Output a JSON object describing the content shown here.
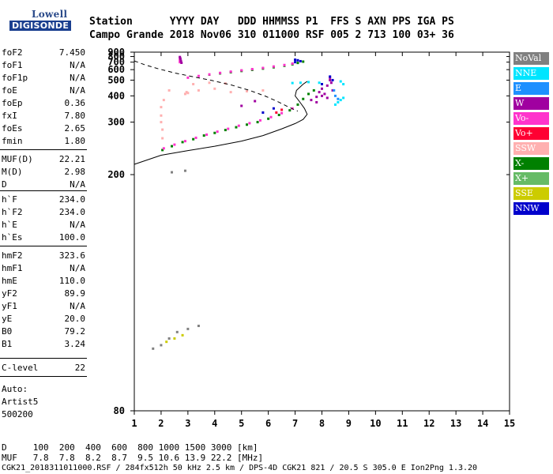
{
  "logo": {
    "line1": "Lowell",
    "line2": "DIGISONDE"
  },
  "header": {
    "row1": "Station      YYYY DAY   DDD HHMMSS P1  FFS S AXN PPS IGA PS",
    "row2": "Campo Grande 2018 Nov06 310 011000 RSF 005 2 713 100 03+ 36"
  },
  "params": [
    {
      "name": "foF2",
      "value": "7.450"
    },
    {
      "name": "foF1",
      "value": "N/A"
    },
    {
      "name": "foF1p",
      "value": "N/A"
    },
    {
      "name": "foE",
      "value": "N/A"
    },
    {
      "name": "foEp",
      "value": "0.36"
    },
    {
      "name": "fxI",
      "value": "7.80"
    },
    {
      "name": "foEs",
      "value": "2.65"
    },
    {
      "name": "fmin",
      "value": "1.80"
    },
    {
      "name": "MUF(D)",
      "value": "22.21"
    },
    {
      "name": "M(D)",
      "value": "2.98"
    },
    {
      "name": "D",
      "value": "N/A"
    },
    {
      "name": "h`F",
      "value": "234.0"
    },
    {
      "name": "h`F2",
      "value": "234.0"
    },
    {
      "name": "h`E",
      "value": "N/A"
    },
    {
      "name": "h`Es",
      "value": "100.0"
    },
    {
      "name": "hmF2",
      "value": "323.6"
    },
    {
      "name": "hmF1",
      "value": "N/A"
    },
    {
      "name": "hmE",
      "value": "110.0"
    },
    {
      "name": "yF2",
      "value": "89.9"
    },
    {
      "name": "yF1",
      "value": "N/A"
    },
    {
      "name": "yE",
      "value": "20.0"
    },
    {
      "name": "B0",
      "value": "79.2"
    },
    {
      "name": "B1",
      "value": "3.24"
    },
    {
      "name": "C-level",
      "value": "22"
    }
  ],
  "auto": {
    "line1": "Auto:",
    "line2": "Artist5",
    "line3": "500200"
  },
  "legend": [
    {
      "label": "NoVal",
      "color": "#808080"
    },
    {
      "label": "NNE",
      "color": "#00e5ff"
    },
    {
      "label": "E",
      "color": "#1e90ff"
    },
    {
      "label": "W",
      "color": "#a000a0"
    },
    {
      "label": "Vo-",
      "color": "#ff33cc"
    },
    {
      "label": "Vo+",
      "color": "#ff0033"
    },
    {
      "label": "SSW",
      "color": "#ffb0b0"
    },
    {
      "label": "X-",
      "color": "#008000"
    },
    {
      "label": "X+",
      "color": "#66bb66"
    },
    {
      "label": "SSE",
      "color": "#cccc00"
    },
    {
      "label": "NNW",
      "color": "#0000cc"
    }
  ],
  "footer": {
    "row1": "D     100  200  400  600  800 1000 1500 3000 [km]",
    "row2": "MUF   7.8  7.8  8.2  8.7  9.5 10.6 13.9 22.2 [MHz]",
    "row3": "CGK21_2018311011000.RSF / 284fx512h 50 kHz 2.5 km / DPS-4D CGK21 821 / 20.5 S 305.0 E Ion2Png 1.3.20"
  },
  "chart_data": {
    "type": "scatter",
    "xlim": [
      1,
      15
    ],
    "ylim": [
      80,
      900
    ],
    "x_ticks": [
      "1",
      "2",
      "3",
      "4",
      "5",
      "6",
      "7",
      "8",
      "9",
      "10",
      "11",
      "12",
      "13",
      "14",
      "15"
    ],
    "y_ticks": [
      "80",
      "200",
      "300",
      "400",
      "500",
      "600",
      "700",
      "800",
      "900"
    ],
    "y_scale": "reciprocal",
    "series": [
      {
        "color": "#008000",
        "points": [
          [
            2.05,
            237
          ],
          [
            2.4,
            244
          ],
          [
            2.8,
            252
          ],
          [
            3.2,
            258
          ],
          [
            3.6,
            266
          ],
          [
            4.0,
            272
          ],
          [
            4.4,
            279
          ],
          [
            4.8,
            286
          ],
          [
            5.2,
            293
          ],
          [
            5.6,
            300
          ],
          [
            6.0,
            310
          ],
          [
            6.4,
            322
          ],
          [
            6.8,
            338
          ],
          [
            7.1,
            360
          ],
          [
            7.3,
            385
          ],
          [
            7.5,
            410
          ],
          [
            7.7,
            430
          ],
          [
            3.8,
            548
          ],
          [
            4.2,
            560
          ],
          [
            4.6,
            572
          ],
          [
            5.0,
            585
          ],
          [
            5.4,
            598
          ],
          [
            5.8,
            612
          ],
          [
            6.2,
            628
          ],
          [
            6.6,
            648
          ],
          [
            6.9,
            668
          ],
          [
            7.1,
            688
          ],
          [
            7.3,
            708
          ]
        ]
      },
      {
        "color": "#ff33cc",
        "points": [
          [
            2.1,
            240
          ],
          [
            2.5,
            247
          ],
          [
            2.9,
            254
          ],
          [
            3.3,
            261
          ],
          [
            3.7,
            268
          ],
          [
            4.1,
            275
          ],
          [
            4.5,
            282
          ],
          [
            4.9,
            290
          ],
          [
            5.3,
            297
          ],
          [
            5.7,
            305
          ],
          [
            6.1,
            315
          ],
          [
            6.5,
            328
          ],
          [
            6.9,
            345
          ],
          [
            3.0,
            520
          ],
          [
            3.4,
            535
          ],
          [
            3.8,
            550
          ],
          [
            4.2,
            565
          ],
          [
            4.6,
            578
          ],
          [
            5.0,
            592
          ],
          [
            5.4,
            606
          ],
          [
            5.8,
            620
          ],
          [
            6.2,
            638
          ],
          [
            6.6,
            658
          ],
          [
            6.9,
            678
          ],
          [
            2.7,
            760
          ],
          [
            2.7,
            730
          ],
          [
            2.7,
            700
          ]
        ]
      },
      {
        "color": "#a000a0",
        "points": [
          [
            7.6,
            380
          ],
          [
            7.8,
            395
          ],
          [
            7.9,
            420
          ],
          [
            8.0,
            440
          ],
          [
            8.1,
            410
          ],
          [
            8.2,
            460
          ],
          [
            8.3,
            500
          ],
          [
            8.35,
            480
          ],
          [
            8.4,
            430
          ],
          [
            8.2,
            390
          ],
          [
            8.0,
            400
          ],
          [
            7.8,
            370
          ],
          [
            8.3,
            520
          ],
          [
            2.7,
            790
          ],
          [
            2.72,
            760
          ],
          [
            2.74,
            720
          ],
          [
            2.76,
            690
          ],
          [
            5.5,
            375
          ],
          [
            5.0,
            355
          ]
        ]
      },
      {
        "color": "#00e5ff",
        "points": [
          [
            8.6,
            370
          ],
          [
            8.7,
            380
          ],
          [
            8.8,
            390
          ],
          [
            8.5,
            360
          ],
          [
            7.9,
            480
          ],
          [
            7.5,
            485
          ],
          [
            7.2,
            480
          ],
          [
            6.9,
            478
          ],
          [
            8.7,
            490
          ],
          [
            8.8,
            470
          ]
        ]
      },
      {
        "color": "#ffb0b0",
        "points": [
          [
            2.0,
            350
          ],
          [
            2.0,
            320
          ],
          [
            2.0,
            300
          ],
          [
            2.05,
            280
          ],
          [
            2.05,
            260
          ],
          [
            2.1,
            380
          ],
          [
            2.3,
            430
          ],
          [
            3.0,
            415
          ],
          [
            3.4,
            430
          ],
          [
            4.0,
            440
          ],
          [
            4.6,
            420
          ],
          [
            5.2,
            425
          ],
          [
            5.8,
            430
          ],
          [
            3.2,
            470
          ],
          [
            3.8,
            480
          ],
          [
            4.4,
            475
          ],
          [
            2.9,
            410
          ],
          [
            2.95,
            420
          ]
        ]
      },
      {
        "color": "#0000cc",
        "points": [
          [
            7.0,
            740
          ],
          [
            7.1,
            730
          ],
          [
            7.2,
            715
          ],
          [
            7.0,
            700
          ],
          [
            8.3,
            530
          ],
          [
            8.4,
            500
          ],
          [
            8.0,
            470
          ],
          [
            6.2,
            345
          ],
          [
            5.8,
            330
          ]
        ]
      },
      {
        "color": "#1e90ff",
        "points": [
          [
            8.5,
            400
          ],
          [
            8.45,
            430
          ],
          [
            8.6,
            385
          ]
        ]
      },
      {
        "color": "#ff0033",
        "points": [
          [
            6.3,
            330
          ],
          [
            6.5,
            340
          ]
        ]
      },
      {
        "color": "#cccc00",
        "points": [
          [
            2.2,
            97
          ],
          [
            2.5,
            98
          ],
          [
            2.8,
            99
          ]
        ]
      },
      {
        "color": "#808080",
        "points": [
          [
            1.7,
            95
          ],
          [
            2.0,
            96
          ],
          [
            2.3,
            98
          ],
          [
            2.6,
            100
          ],
          [
            3.0,
            101
          ],
          [
            3.4,
            102
          ],
          [
            2.9,
            205
          ],
          [
            2.4,
            203
          ]
        ]
      }
    ],
    "profile_solid": [
      [
        1.0,
        214
      ],
      [
        2.0,
        228
      ],
      [
        3.0,
        236
      ],
      [
        4.0,
        244
      ],
      [
        5.0,
        254
      ],
      [
        5.8,
        266
      ],
      [
        6.5,
        282
      ],
      [
        7.0,
        296
      ],
      [
        7.3,
        308
      ],
      [
        7.45,
        324
      ],
      [
        7.35,
        345
      ],
      [
        7.15,
        375
      ],
      [
        7.0,
        400
      ],
      [
        7.05,
        430
      ],
      [
        7.3,
        470
      ],
      [
        7.45,
        490
      ]
    ],
    "profile_dashed": [
      [
        1.0,
        720
      ],
      [
        1.4,
        660
      ],
      [
        1.9,
        610
      ],
      [
        2.5,
        565
      ],
      [
        3.2,
        528
      ],
      [
        3.9,
        497
      ],
      [
        4.6,
        465
      ],
      [
        5.3,
        430
      ],
      [
        5.9,
        398
      ],
      [
        6.4,
        370
      ],
      [
        6.8,
        348
      ],
      [
        7.1,
        335
      ]
    ]
  }
}
